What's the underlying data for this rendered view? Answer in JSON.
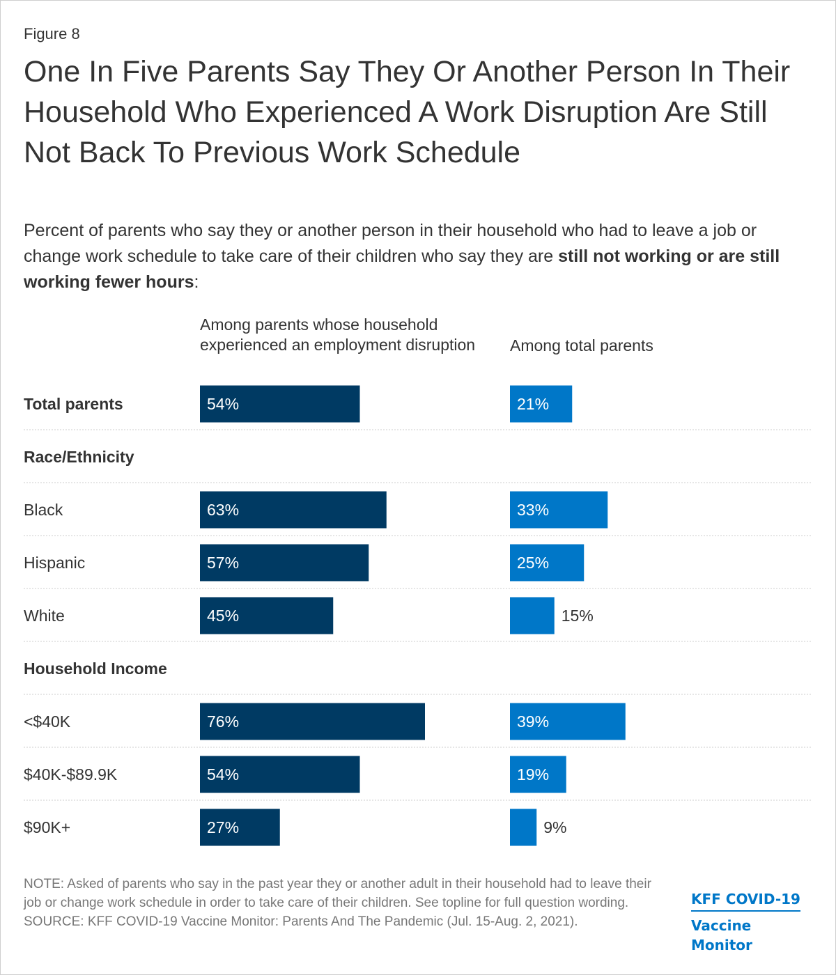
{
  "figure_label": "Figure 8",
  "title": "One In Five Parents Say They Or Another Person In Their Household Who Experienced A Work Disruption Are Still Not Back To Previous Work Schedule",
  "subtitle": {
    "prefix": "Percent of parents who say they or another person in their household who had to leave a job or change work schedule to take care of their children who say they are ",
    "bold": "still not working or are still working fewer hours",
    "suffix": ":"
  },
  "colors": {
    "series1": "#003a63",
    "series2": "#0077c8",
    "divider": "#cccccc"
  },
  "chart_data": {
    "type": "bar",
    "orientation": "horizontal",
    "title": "One In Five Parents Say They Or Another Person In Their Household Who Experienced A Work Disruption Are Still Not Back To Previous Work Schedule",
    "unit": "%",
    "series": [
      {
        "name": "Among parents whose household experienced an employment disruption",
        "values": [
          54,
          null,
          63,
          57,
          45,
          null,
          76,
          54,
          27
        ]
      },
      {
        "name": "Among total parents",
        "values": [
          21,
          null,
          33,
          25,
          15,
          null,
          39,
          19,
          9
        ]
      }
    ],
    "rows": [
      {
        "label": "Total parents",
        "type": "category",
        "bold": true
      },
      {
        "label": "Race/Ethnicity",
        "type": "header",
        "bold": true
      },
      {
        "label": "Black",
        "type": "category",
        "bold": false
      },
      {
        "label": "Hispanic",
        "type": "category",
        "bold": false
      },
      {
        "label": "White",
        "type": "category",
        "bold": false
      },
      {
        "label": "Household Income",
        "type": "header",
        "bold": true
      },
      {
        "label": "<$40K",
        "type": "category",
        "bold": false
      },
      {
        "label": "$40K-$89.9K",
        "type": "category",
        "bold": false
      },
      {
        "label": "$90K+",
        "type": "category",
        "bold": false
      }
    ],
    "xlim": [
      0,
      100
    ]
  },
  "note": "NOTE: Asked of parents who say in the past year they or another adult in their household had to leave their job or change work schedule in order to take care of their children. See topline for full question wording.",
  "source": "SOURCE: KFF COVID-19 Vaccine Monitor: Parents And The Pandemic (Jul. 15-Aug. 2, 2021).",
  "logo": {
    "line1": "KFF COVID-19",
    "line2": "Vaccine Monitor"
  }
}
